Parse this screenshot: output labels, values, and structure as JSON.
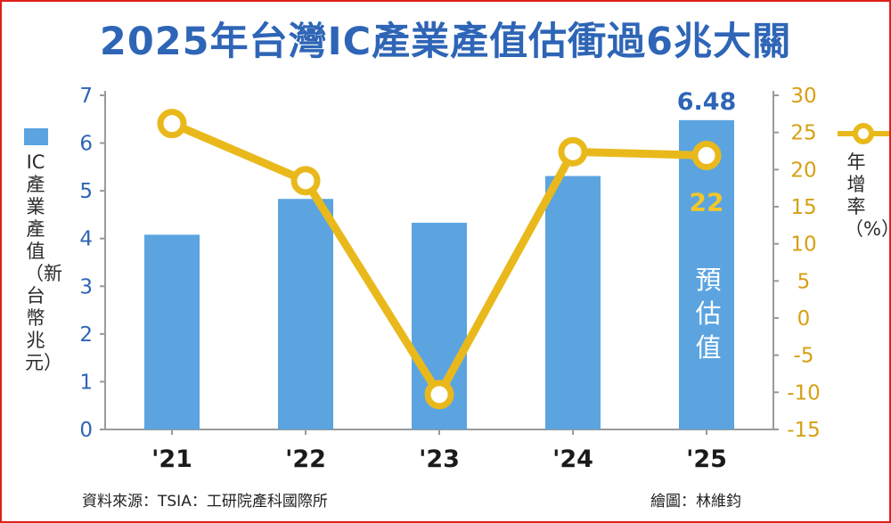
{
  "title": "2025年台灣IC產業產值估衝過6兆大關",
  "left_axis_label": "IC產業產值（新台幣兆元）",
  "right_axis_label": "年增率（%）",
  "forecast_label": "預估值",
  "source": "資料來源：TSIA：工研院產科國際所",
  "credit": "繪圖：林維鈞",
  "colors": {
    "bar": "#5ba4e0",
    "line": "#e9b91c",
    "left_axis": "#2e65b6",
    "right_axis": "#d6a014",
    "title": "#2e65b6",
    "border": "#e0201b"
  },
  "chart_data": {
    "type": "bar",
    "categories": [
      "'21",
      "'22",
      "'23",
      "'24",
      "'25"
    ],
    "series": [
      {
        "type": "bar",
        "axis": "left",
        "values": [
          4.08,
          4.83,
          4.33,
          5.31,
          6.48
        ],
        "data_labels": [
          null,
          null,
          null,
          null,
          "6.48"
        ]
      },
      {
        "name": "年增率（%）",
        "type": "line",
        "axis": "right",
        "values": [
          26.2,
          18.5,
          -10.3,
          22.4,
          21.9
        ],
        "data_labels": [
          null,
          null,
          null,
          null,
          "22"
        ]
      }
    ],
    "ylim_left": [
      0,
      7
    ],
    "yticks_left": [
      "0",
      "1",
      "2",
      "3",
      "4",
      "5",
      "6",
      "7"
    ],
    "ylim_right": [
      -15,
      30
    ],
    "yticks_right": [
      "-15",
      "-10",
      "-5",
      "0",
      "5",
      "10",
      "15",
      "20",
      "25",
      "30"
    ],
    "ylabel": "IC產業產值（新台幣兆元）",
    "ylabel_right": "年增率（%）",
    "legend": [
      "IC產業產值",
      "年增率（%）"
    ],
    "grid": false
  }
}
